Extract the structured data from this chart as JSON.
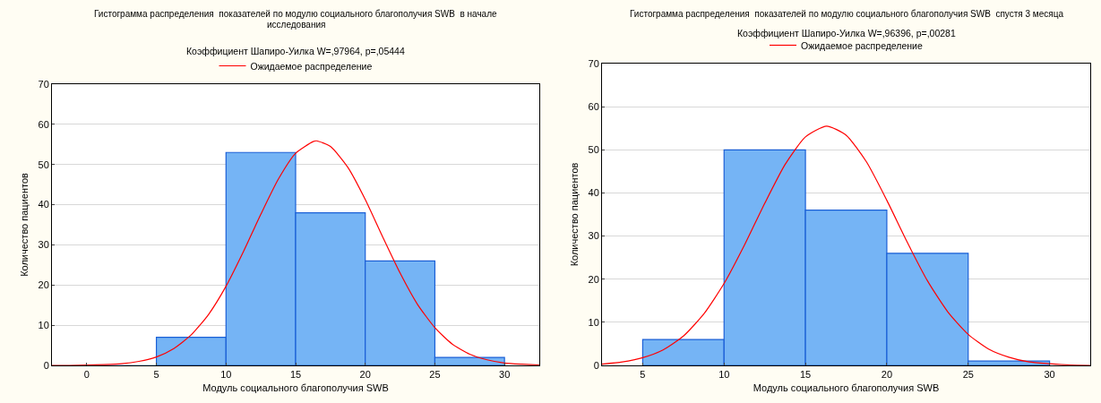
{
  "chart_data": [
    {
      "type": "histogram",
      "title": "Гистограмма распределения  показателей по модулю социального благополучия SWB  в начале исследования",
      "subtitle": "Коэффициент Шапиро-Уилка W=,97964, p=,05444",
      "xlabel": "Модуль социального благополучия SWB",
      "ylabel": "Количество пациентов",
      "xlim": [
        -2.5,
        32.5
      ],
      "xticks": [
        0,
        5,
        10,
        15,
        20,
        25,
        30
      ],
      "ylim": [
        0,
        70
      ],
      "yticks": [
        0,
        10,
        20,
        30,
        40,
        50,
        60,
        70
      ],
      "grid": "y",
      "legend": "top",
      "series": [
        {
          "color": "#75b4f5",
          "bins": [
            0,
            5,
            10,
            15,
            20,
            25,
            30
          ],
          "values": [
            0,
            7,
            53,
            38,
            26,
            2
          ]
        },
        {
          "type": "line",
          "name": "Ожидаемое распределение",
          "color": "#ff0000",
          "x": [
            -2.5,
            -1.25,
            0,
            1.25,
            2.5,
            3.75,
            5,
            6.25,
            7.5,
            8.75,
            10,
            11.25,
            12.5,
            13.75,
            15,
            16.25,
            16.5,
            17.5,
            18.75,
            20,
            21.25,
            22.5,
            23.75,
            25,
            26.25,
            27.5,
            28.75,
            30,
            31.25,
            32.5
          ],
          "values": [
            0,
            0,
            0.1,
            0.2,
            0.4,
            1.0,
            2.1,
            4.2,
            7.6,
            12.7,
            19.7,
            28.3,
            37.6,
            46.3,
            52.8,
            55.7,
            55.9,
            54.5,
            49.3,
            41.3,
            32.0,
            23.0,
            15.2,
            9.4,
            5.3,
            2.8,
            1.4,
            0.6,
            0.3,
            0.1
          ]
        }
      ]
    },
    {
      "type": "histogram",
      "title": "Гистограмма распределения  показателей по модулю социального благополучия SWB  спустя 3 месяца",
      "subtitle": "Коэффициент Шапиро-Уилка W=,96396, p=,00281",
      "xlabel": "Модуль социального благополучия SWB",
      "ylabel": "Количество пациентов",
      "xlim": [
        2.5,
        32.5
      ],
      "xticks": [
        5,
        10,
        15,
        20,
        25,
        30
      ],
      "ylim": [
        0,
        70
      ],
      "yticks": [
        0,
        10,
        20,
        30,
        40,
        50,
        60,
        70
      ],
      "grid": "y",
      "legend": "top",
      "series": [
        {
          "color": "#75b4f5",
          "bins": [
            5,
            10,
            15,
            20,
            25,
            30
          ],
          "values": [
            6,
            50,
            36,
            26,
            1
          ]
        },
        {
          "type": "line",
          "name": "Ожидаемое распределение",
          "color": "#ff0000",
          "x": [
            2.5,
            3.75,
            5,
            6.25,
            7.5,
            8.75,
            10,
            11.25,
            12.5,
            13.75,
            15,
            16.3,
            17.5,
            18.75,
            20,
            21.25,
            22.5,
            23.75,
            25,
            26.25,
            27.5,
            28.75,
            30,
            31.25,
            32.5
          ],
          "values": [
            0.3,
            0.8,
            1.8,
            3.6,
            6.8,
            11.9,
            19.0,
            27.9,
            37.6,
            46.6,
            53.0,
            55.5,
            53.4,
            47.2,
            38.3,
            28.6,
            19.6,
            12.4,
            7.2,
            3.8,
            1.9,
            0.8,
            0.4,
            0.1,
            0
          ]
        }
      ]
    }
  ]
}
